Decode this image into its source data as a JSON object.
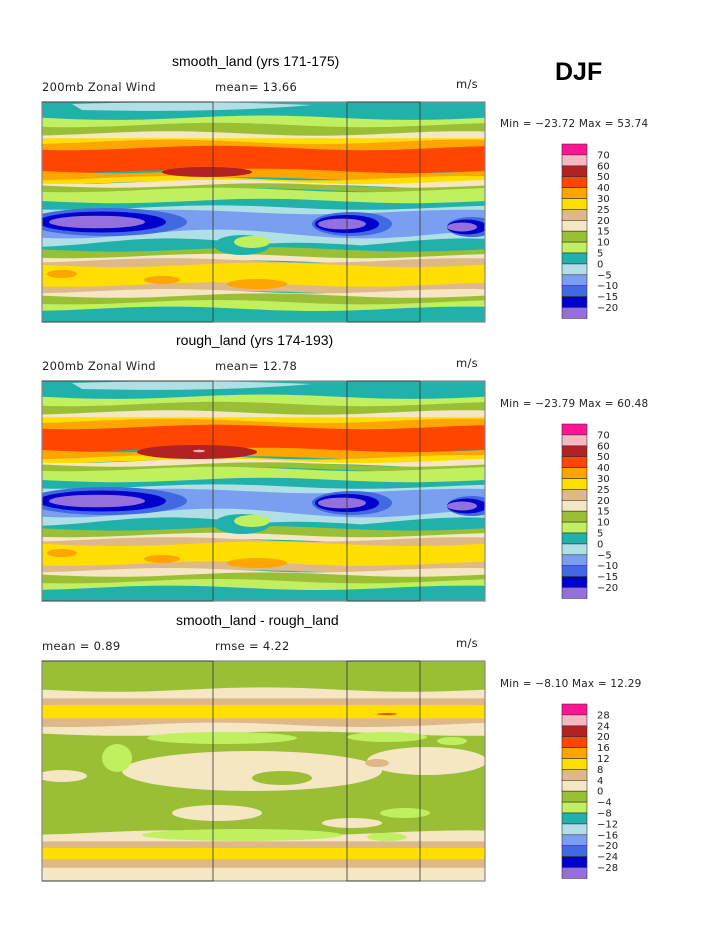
{
  "season": "DJF",
  "palette": [
    "#ff1493",
    "#ffb6c1",
    "#b22222",
    "#ff4500",
    "#ffa500",
    "#ffde00",
    "#deb887",
    "#f5e6c4",
    "#9abf35",
    "#c0f060",
    "#20b2aa",
    "#b0e0e6",
    "#7b9ff0",
    "#4169e1",
    "#0000cd",
    "#9370db"
  ],
  "panels": [
    {
      "title": "smooth_land (yrs 171-175)",
      "left_label": "200mb Zonal Wind",
      "mid_label": "mean=  13.66",
      "units": "m/s",
      "minmax": "Min = −23.72 Max =  53.74",
      "legend_labels": [
        "70",
        "60",
        "50",
        "40",
        "30",
        "25",
        "20",
        "15",
        "10",
        "5",
        "0",
        "−5",
        "−10",
        "−15",
        "−20"
      ]
    },
    {
      "title": "rough_land (yrs 174-193)",
      "left_label": "200mb Zonal Wind",
      "mid_label": "mean=  12.78",
      "units": "m/s",
      "minmax": "Min = −23.79 Max =  60.48",
      "legend_labels": [
        "70",
        "60",
        "50",
        "40",
        "30",
        "25",
        "20",
        "15",
        "10",
        "5",
        "0",
        "−5",
        "−10",
        "−15",
        "−20"
      ]
    },
    {
      "title": "smooth_land - rough_land",
      "left_label": "mean =    0.89",
      "mid_label": "rmse =    4.22",
      "units": "m/s",
      "minmax": "Min =  −8.10 Max =  12.29",
      "legend_labels": [
        "28",
        "24",
        "20",
        "16",
        "12",
        "8",
        "4",
        "0",
        "−4",
        "−8",
        "−12",
        "−16",
        "−20",
        "−24",
        "−28"
      ]
    }
  ],
  "chart_data": [
    {
      "type": "heatmap",
      "title": "smooth_land (yrs 171-175)",
      "variable": "200mb Zonal Wind",
      "units": "m/s",
      "mean": 13.66,
      "min": -23.72,
      "max": 53.74,
      "contour_levels": [
        -20,
        -15,
        -10,
        -5,
        0,
        5,
        10,
        15,
        20,
        25,
        30,
        40,
        50,
        60,
        70
      ]
    },
    {
      "type": "heatmap",
      "title": "rough_land (yrs 174-193)",
      "variable": "200mb Zonal Wind",
      "units": "m/s",
      "mean": 12.78,
      "min": -23.79,
      "max": 60.48,
      "contour_levels": [
        -20,
        -15,
        -10,
        -5,
        0,
        5,
        10,
        15,
        20,
        25,
        30,
        40,
        50,
        60,
        70
      ]
    },
    {
      "type": "heatmap",
      "title": "smooth_land - rough_land",
      "units": "m/s",
      "mean": 0.89,
      "rmse": 4.22,
      "min": -8.1,
      "max": 12.29,
      "contour_levels": [
        -28,
        -24,
        -20,
        -16,
        -12,
        -8,
        -4,
        0,
        4,
        8,
        12,
        16,
        20,
        24,
        28
      ]
    }
  ]
}
